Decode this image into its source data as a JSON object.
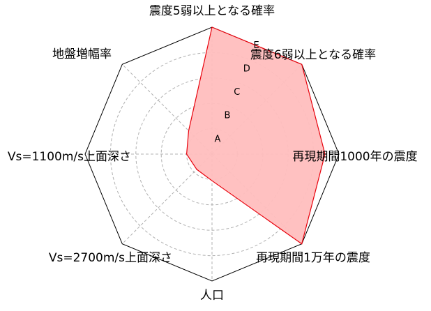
{
  "chart_data": {
    "type": "radar",
    "axes": [
      "震度5弱以上となる確率",
      "震度6弱以上となる確率",
      "再現期間1000年の震度",
      "再現期間1万年の震度",
      "人口",
      "Vs=2700m/s上面深さ",
      "Vs=1100m/s上面深さ",
      "地盤増幅率"
    ],
    "rings": [
      "A",
      "B",
      "C",
      "D",
      "E"
    ],
    "range": [
      0,
      5
    ],
    "values": [
      5.0,
      5.0,
      4.45,
      5.0,
      1.05,
      0.85,
      1.0,
      1.3
    ],
    "grid": true,
    "colors": {
      "fill": "#ffbebe",
      "line": "#e8000b",
      "frame": "#000000",
      "grid": "#b0b0b0"
    }
  }
}
